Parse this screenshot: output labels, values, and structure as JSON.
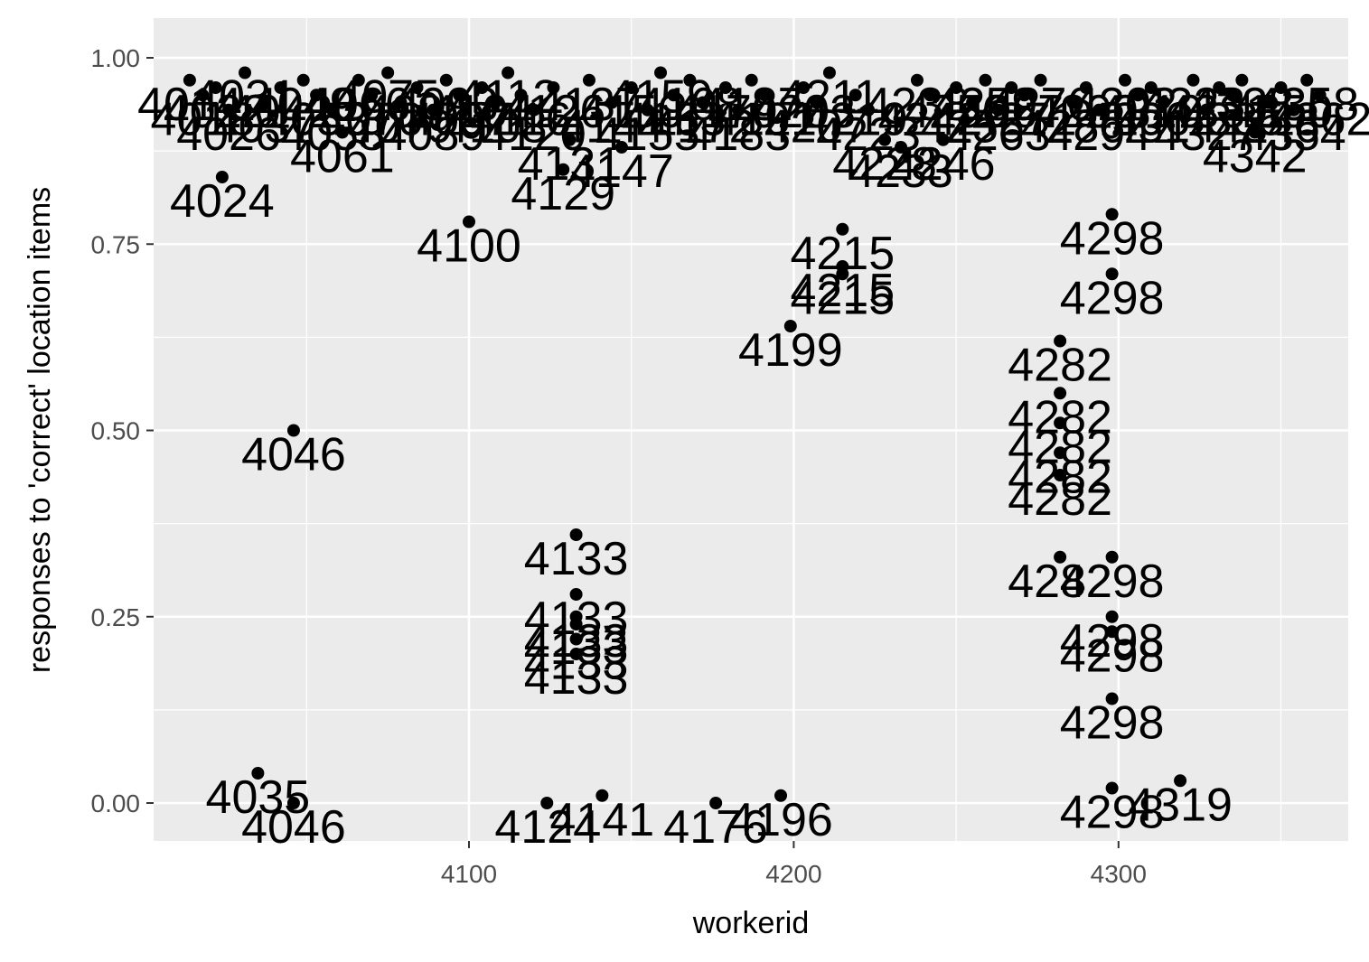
{
  "chart_data": {
    "type": "scatter",
    "xlabel": "workerid",
    "ylabel": "responses to 'correct' location items",
    "xlim": [
      4012,
      4371
    ],
    "ylim": [
      -0.05,
      1.04
    ],
    "x_ticks": [
      {
        "value": 4100,
        "label": "4100"
      },
      {
        "value": 4200,
        "label": "4200"
      },
      {
        "value": 4300,
        "label": "4300"
      }
    ],
    "y_ticks": [
      {
        "value": 0.0,
        "label": "0.00"
      },
      {
        "value": 0.25,
        "label": "0.25"
      },
      {
        "value": 0.5,
        "label": "0.50"
      },
      {
        "value": 0.75,
        "label": "0.75"
      },
      {
        "value": 1.0,
        "label": "1.00"
      }
    ],
    "grid": true,
    "point_color": "#000000",
    "panel_color": "#ebebeb",
    "grid_color": "#ffffff",
    "points": [
      {
        "x": 4024,
        "y": 0.84,
        "label": "4024"
      },
      {
        "x": 4035,
        "y": 0.04,
        "label": "4035"
      },
      {
        "x": 4046,
        "y": 0.5,
        "label": "4046"
      },
      {
        "x": 4046,
        "y": 0.0,
        "label": "4046"
      },
      {
        "x": 4100,
        "y": 0.78,
        "label": "4100"
      },
      {
        "x": 4124,
        "y": 0.0,
        "label": "4124"
      },
      {
        "x": 4129,
        "y": 0.85,
        "label": "4129"
      },
      {
        "x": 4133,
        "y": 0.36,
        "label": "4133"
      },
      {
        "x": 4133,
        "y": 0.28,
        "label": "4133"
      },
      {
        "x": 4133,
        "y": 0.25,
        "label": "4133"
      },
      {
        "x": 4133,
        "y": 0.24,
        "label": "4133"
      },
      {
        "x": 4133,
        "y": 0.22,
        "label": "4133"
      },
      {
        "x": 4133,
        "y": 0.2,
        "label": "4133"
      },
      {
        "x": 4141,
        "y": 0.01,
        "label": "4141"
      },
      {
        "x": 4147,
        "y": 0.88,
        "label": "4147"
      },
      {
        "x": 4176,
        "y": 0.0,
        "label": "4176"
      },
      {
        "x": 4196,
        "y": 0.01,
        "label": "4196"
      },
      {
        "x": 4199,
        "y": 0.64,
        "label": "4199"
      },
      {
        "x": 4215,
        "y": 0.77,
        "label": "4215"
      },
      {
        "x": 4215,
        "y": 0.72,
        "label": "4215"
      },
      {
        "x": 4215,
        "y": 0.71,
        "label": "4215"
      },
      {
        "x": 4282,
        "y": 0.62,
        "label": "4282"
      },
      {
        "x": 4282,
        "y": 0.55,
        "label": "4282"
      },
      {
        "x": 4282,
        "y": 0.51,
        "label": "4282"
      },
      {
        "x": 4282,
        "y": 0.47,
        "label": "4282"
      },
      {
        "x": 4282,
        "y": 0.44,
        "label": "4282"
      },
      {
        "x": 4282,
        "y": 0.33,
        "label": "4282"
      },
      {
        "x": 4298,
        "y": 0.79,
        "label": "4298"
      },
      {
        "x": 4298,
        "y": 0.71,
        "label": "4298"
      },
      {
        "x": 4298,
        "y": 0.33,
        "label": "4298"
      },
      {
        "x": 4298,
        "y": 0.25,
        "label": "4298"
      },
      {
        "x": 4298,
        "y": 0.23,
        "label": "4298"
      },
      {
        "x": 4298,
        "y": 0.14,
        "label": "4298"
      },
      {
        "x": 4298,
        "y": 0.02,
        "label": "4298"
      },
      {
        "x": 4319,
        "y": 0.03,
        "label": "4319"
      },
      {
        "x": 4342,
        "y": 0.9,
        "label": "4342"
      }
    ],
    "overlapped_top_points": [
      {
        "x": 4014,
        "y": 0.97,
        "label": "4014"
      },
      {
        "x": 4018,
        "y": 0.95,
        "label": "4018"
      },
      {
        "x": 4022,
        "y": 0.96,
        "label": "4022"
      },
      {
        "x": 4026,
        "y": 0.93,
        "label": "4026"
      },
      {
        "x": 4031,
        "y": 0.98,
        "label": "4031"
      },
      {
        "x": 4037,
        "y": 0.94,
        "label": "4037"
      },
      {
        "x": 4042,
        "y": 0.96,
        "label": "4042"
      },
      {
        "x": 4049,
        "y": 0.97,
        "label": "4049"
      },
      {
        "x": 4053,
        "y": 0.95,
        "label": "4053"
      },
      {
        "x": 4058,
        "y": 0.93,
        "label": "4058"
      },
      {
        "x": 4061,
        "y": 0.9,
        "label": "4061"
      },
      {
        "x": 4066,
        "y": 0.97,
        "label": "4066"
      },
      {
        "x": 4070,
        "y": 0.95,
        "label": "4070"
      },
      {
        "x": 4075,
        "y": 0.98,
        "label": "4075"
      },
      {
        "x": 4079,
        "y": 0.94,
        "label": "4079"
      },
      {
        "x": 4084,
        "y": 0.96,
        "label": "4084"
      },
      {
        "x": 4089,
        "y": 0.93,
        "label": "4089"
      },
      {
        "x": 4093,
        "y": 0.97,
        "label": "4093"
      },
      {
        "x": 4097,
        "y": 0.95,
        "label": "4097"
      },
      {
        "x": 4104,
        "y": 0.96,
        "label": "4104"
      },
      {
        "x": 4108,
        "y": 0.94,
        "label": "4108"
      },
      {
        "x": 4112,
        "y": 0.98,
        "label": "4112"
      },
      {
        "x": 4116,
        "y": 0.95,
        "label": "4116"
      },
      {
        "x": 4120,
        "y": 0.93,
        "label": "4120"
      },
      {
        "x": 4126,
        "y": 0.96,
        "label": "4126"
      },
      {
        "x": 4131,
        "y": 0.89,
        "label": "4131"
      },
      {
        "x": 4137,
        "y": 0.97,
        "label": "4137"
      },
      {
        "x": 4144,
        "y": 0.94,
        "label": "4144"
      },
      {
        "x": 4150,
        "y": 0.96,
        "label": "4150"
      },
      {
        "x": 4155,
        "y": 0.93,
        "label": "4155"
      },
      {
        "x": 4159,
        "y": 0.98,
        "label": "4159"
      },
      {
        "x": 4163,
        "y": 0.95,
        "label": "4163"
      },
      {
        "x": 4168,
        "y": 0.97,
        "label": "4168"
      },
      {
        "x": 4172,
        "y": 0.94,
        "label": "4172"
      },
      {
        "x": 4179,
        "y": 0.96,
        "label": "4179"
      },
      {
        "x": 4183,
        "y": 0.93,
        "label": "4183"
      },
      {
        "x": 4187,
        "y": 0.97,
        "label": "4187"
      },
      {
        "x": 4191,
        "y": 0.95,
        "label": "4191"
      },
      {
        "x": 4203,
        "y": 0.96,
        "label": "4203"
      },
      {
        "x": 4207,
        "y": 0.94,
        "label": "4207"
      },
      {
        "x": 4211,
        "y": 0.98,
        "label": "4211"
      },
      {
        "x": 4219,
        "y": 0.95,
        "label": "4219"
      },
      {
        "x": 4223,
        "y": 0.93,
        "label": "4223"
      },
      {
        "x": 4228,
        "y": 0.89,
        "label": "4228"
      },
      {
        "x": 4233,
        "y": 0.88,
        "label": "4233"
      },
      {
        "x": 4238,
        "y": 0.97,
        "label": "4238"
      },
      {
        "x": 4242,
        "y": 0.95,
        "label": "4242"
      },
      {
        "x": 4246,
        "y": 0.89,
        "label": "4246"
      },
      {
        "x": 4250,
        "y": 0.96,
        "label": "4250"
      },
      {
        "x": 4255,
        "y": 0.94,
        "label": "4255"
      },
      {
        "x": 4259,
        "y": 0.97,
        "label": "4259"
      },
      {
        "x": 4263,
        "y": 0.93,
        "label": "4263"
      },
      {
        "x": 4267,
        "y": 0.96,
        "label": "4267"
      },
      {
        "x": 4271,
        "y": 0.95,
        "label": "4271"
      },
      {
        "x": 4276,
        "y": 0.97,
        "label": "4276"
      },
      {
        "x": 4286,
        "y": 0.94,
        "label": "4286"
      },
      {
        "x": 4290,
        "y": 0.96,
        "label": "4290"
      },
      {
        "x": 4294,
        "y": 0.93,
        "label": "4294"
      },
      {
        "x": 4302,
        "y": 0.97,
        "label": "4302"
      },
      {
        "x": 4306,
        "y": 0.95,
        "label": "4306"
      },
      {
        "x": 4310,
        "y": 0.96,
        "label": "4310"
      },
      {
        "x": 4314,
        "y": 0.94,
        "label": "4314"
      },
      {
        "x": 4323,
        "y": 0.97,
        "label": "4323"
      },
      {
        "x": 4327,
        "y": 0.93,
        "label": "4327"
      },
      {
        "x": 4331,
        "y": 0.96,
        "label": "4331"
      },
      {
        "x": 4335,
        "y": 0.95,
        "label": "4335"
      },
      {
        "x": 4338,
        "y": 0.97,
        "label": "4338"
      },
      {
        "x": 4346,
        "y": 0.94,
        "label": "4346"
      },
      {
        "x": 4350,
        "y": 0.96,
        "label": "4350"
      },
      {
        "x": 4354,
        "y": 0.93,
        "label": "4354"
      },
      {
        "x": 4358,
        "y": 0.97,
        "label": "4358"
      },
      {
        "x": 4362,
        "y": 0.95,
        "label": "4362"
      }
    ]
  }
}
